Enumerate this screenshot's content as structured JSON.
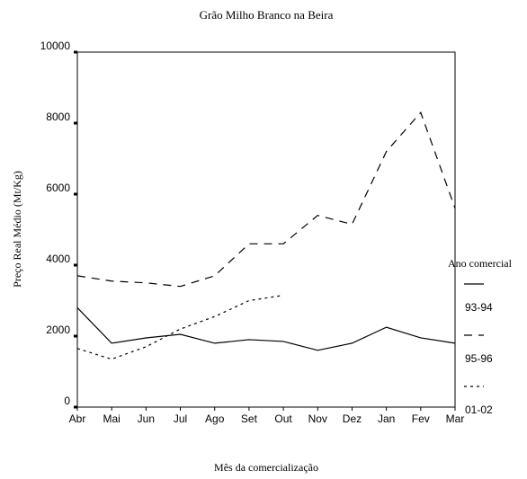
{
  "chart_data": {
    "type": "line",
    "title": "Grão Milho Branco na Beira",
    "x_label": "Mês da comercialização",
    "y_label": "Preço Real Médio (Mt/Kg)",
    "legend_title": "Ano comercial",
    "legend": "right",
    "categories": [
      "Abr",
      "Mai",
      "Jun",
      "Jul",
      "Ago",
      "Set",
      "Out",
      "Nov",
      "Dez",
      "Jan",
      "Fev",
      "Mar"
    ],
    "series": [
      {
        "name": "93-94",
        "color": "#000000",
        "style": "solid",
        "values": [
          2800,
          1800,
          1950,
          2050,
          1800,
          1900,
          1850,
          1600,
          1800,
          2250,
          1950,
          1800
        ]
      },
      {
        "name": "95-96",
        "color": "#000000",
        "style": "dashed",
        "values": [
          3700,
          3550,
          3500,
          3400,
          3700,
          4600,
          4600,
          5400,
          5150,
          7200,
          8300,
          5600
        ]
      },
      {
        "name": "01-02",
        "color": "#000000",
        "style": "dotted",
        "values": [
          1650,
          1350,
          1700,
          2200,
          2550,
          3000,
          3150,
          null,
          null,
          null,
          null,
          null
        ]
      }
    ],
    "ylim": [
      0,
      10000
    ],
    "yticks": [
      0,
      2000,
      4000,
      6000,
      8000,
      10000
    ],
    "grid": false
  }
}
